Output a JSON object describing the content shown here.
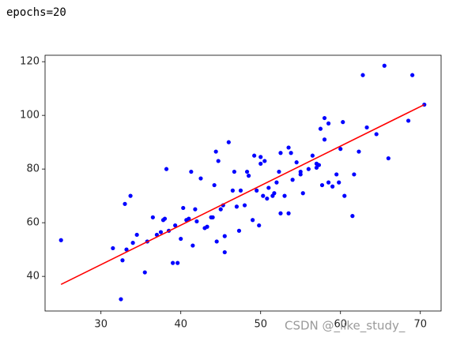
{
  "header": {
    "text": "epochs=20"
  },
  "chart_data": {
    "type": "scatter",
    "xlim": [
      23,
      72.6
    ],
    "ylim": [
      27.1,
      122.4
    ],
    "xticks": [
      30,
      40,
      50,
      60,
      70
    ],
    "yticks": [
      40,
      60,
      80,
      100,
      120
    ],
    "series": [
      {
        "type": "scatter",
        "color": "#0000ff",
        "x": [
          25,
          31.5,
          32.5,
          32.7,
          33,
          33.2,
          33.7,
          34,
          34.5,
          35.5,
          35.8,
          36.5,
          37,
          37.5,
          37.8,
          38,
          38.2,
          38.5,
          39,
          39.3,
          39.6,
          40,
          40.3,
          40.7,
          41,
          41.3,
          41.5,
          41.8,
          42,
          42.5,
          43,
          43.3,
          43.8,
          44,
          44.2,
          44.4,
          44.5,
          44.7,
          45,
          45.3,
          45.5,
          45.5,
          46,
          46.5,
          46.7,
          47,
          47.3,
          47.5,
          48,
          48.3,
          48.5,
          49,
          49.2,
          49.5,
          49.8,
          50,
          50,
          50.3,
          50.5,
          50.8,
          51,
          51.5,
          51.7,
          52,
          52.3,
          52.5,
          52.5,
          53,
          53.5,
          53.5,
          53.8,
          54,
          54.5,
          55,
          55,
          55.3,
          56,
          56.5,
          57,
          57,
          57.3,
          57.5,
          57.7,
          58,
          58,
          58.5,
          58.5,
          59,
          59.5,
          59.8,
          60,
          60.3,
          60.5,
          61.5,
          61.7,
          62.3,
          62.8,
          63.3,
          64.5,
          65.5,
          66,
          68.5,
          69,
          70.5
        ],
        "values": [
          53.5,
          50.5,
          31.5,
          46,
          67,
          50,
          70,
          52.5,
          55.5,
          41.5,
          53,
          62,
          55.5,
          56.5,
          61,
          61.5,
          80,
          57,
          45,
          59,
          45,
          54,
          65.5,
          61,
          61.5,
          79,
          51.5,
          65,
          60.5,
          76.5,
          58,
          58.5,
          62,
          62,
          74,
          86.5,
          53,
          83,
          65,
          66.5,
          55,
          49,
          90,
          72,
          79,
          66,
          57,
          72,
          66.5,
          79,
          77.5,
          61,
          85,
          72,
          59,
          84.5,
          82,
          70,
          83,
          69,
          73,
          70,
          71,
          75,
          79,
          86,
          63.5,
          70,
          88,
          63.5,
          86,
          76,
          82.5,
          78,
          79,
          71,
          80,
          85,
          80.5,
          82,
          81.5,
          95,
          74,
          91,
          99,
          75,
          97,
          73.5,
          78,
          75,
          87.5,
          97.5,
          70,
          62.5,
          78,
          86.5,
          115,
          95.5,
          93,
          118.5,
          84,
          98,
          115,
          104
        ]
      },
      {
        "type": "line",
        "color": "#ff0000",
        "x": [
          25,
          70.5
        ],
        "values": [
          37,
          104
        ]
      }
    ]
  },
  "watermark": "CSDN @_like_study_"
}
